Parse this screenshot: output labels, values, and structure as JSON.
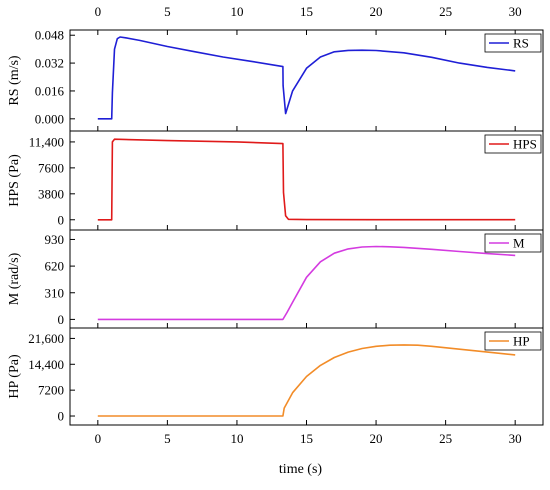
{
  "chart_data": {
    "type": "line",
    "xlabel": "time (s)",
    "x_ticks": [
      "0",
      "5",
      "10",
      "15",
      "20",
      "25",
      "30"
    ],
    "xlim": [
      -2,
      32
    ],
    "grid": false,
    "panels": [
      {
        "ylabel": "RS (m/s)",
        "ylim": [
          -0.007,
          0.051
        ],
        "y_ticks": [
          "0.000",
          "0.016",
          "0.032",
          "0.048"
        ],
        "y_tick_values": [
          0,
          0.016,
          0.032,
          0.048
        ],
        "legend": "RS",
        "color": "#1f1fd6",
        "series": {
          "x": [
            0,
            1,
            1.05,
            1.2,
            1.4,
            1.6,
            2,
            3,
            5,
            7,
            9,
            11,
            13.3,
            13.32,
            13.5,
            14,
            15,
            16,
            17,
            18,
            19,
            20,
            22,
            24,
            26,
            28,
            30
          ],
          "y": [
            0,
            0,
            0.015,
            0.04,
            0.046,
            0.047,
            0.0465,
            0.045,
            0.0415,
            0.0385,
            0.0355,
            0.033,
            0.03,
            0.019,
            0.003,
            0.016,
            0.029,
            0.0355,
            0.0385,
            0.0393,
            0.0394,
            0.0392,
            0.0379,
            0.0353,
            0.032,
            0.0295,
            0.0275
          ]
        }
      },
      {
        "ylabel": "HPS (Pa)",
        "ylim": [
          -1500,
          13000
        ],
        "y_ticks": [
          "0",
          "3800",
          "7600",
          "11,400"
        ],
        "y_tick_values": [
          0,
          3800,
          7600,
          11400
        ],
        "legend": "HPS",
        "color": "#e01a1a",
        "series": {
          "x": [
            0,
            1,
            1.05,
            1.2,
            5,
            10,
            13.3,
            13.35,
            13.5,
            13.7,
            15,
            20,
            25,
            30
          ],
          "y": [
            0,
            0,
            11400,
            11800,
            11600,
            11400,
            11150,
            4000,
            600,
            60,
            20,
            10,
            10,
            10
          ]
        }
      },
      {
        "ylabel": "M (rad/s)",
        "ylim": [
          -100,
          1040
        ],
        "y_ticks": [
          "0",
          "310",
          "620",
          "930"
        ],
        "y_tick_values": [
          0,
          310,
          620,
          930
        ],
        "legend": "M",
        "color": "#d43be0",
        "series": {
          "x": [
            0,
            13.3,
            13.6,
            14,
            15,
            16,
            17,
            18,
            19,
            20,
            21,
            22,
            24,
            26,
            28,
            30
          ],
          "y": [
            0,
            0,
            80,
            200,
            490,
            670,
            770,
            820,
            842,
            848,
            845,
            838,
            815,
            790,
            765,
            745
          ]
        }
      },
      {
        "ylabel": "HP (Pa)",
        "ylim": [
          -2500,
          24500
        ],
        "y_ticks": [
          "0",
          "7200",
          "14,400",
          "21,600"
        ],
        "y_tick_values": [
          0,
          7200,
          14400,
          21600
        ],
        "legend": "HP",
        "color": "#f28c28",
        "series": {
          "x": [
            0,
            13.3,
            13.4,
            14,
            15,
            16,
            17,
            18,
            19,
            20,
            21,
            22,
            23,
            24,
            26,
            28,
            30
          ],
          "y": [
            0,
            0,
            2200,
            6500,
            11000,
            14100,
            16300,
            17800,
            18800,
            19400,
            19700,
            19800,
            19700,
            19400,
            18600,
            17800,
            17000
          ]
        }
      }
    ]
  }
}
